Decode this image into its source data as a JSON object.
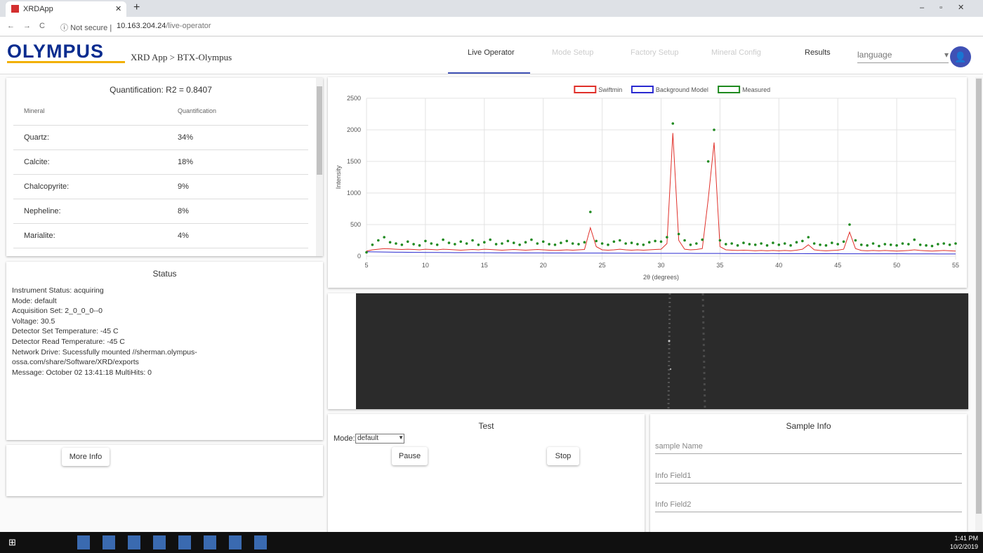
{
  "browser": {
    "tab_title": "XRDApp",
    "security": "Not secure",
    "url_host": "10.163.204.24",
    "url_path": "/live-operator"
  },
  "header": {
    "logo": "OLYMPUS",
    "breadcrumb": "XRD App > BTX-Olympus",
    "tabs": [
      "Live Operator",
      "Mode Setup",
      "Factory Setup",
      "Mineral Config",
      "Results"
    ],
    "language": "language"
  },
  "quantification": {
    "title": "Quantification: R2 = 0.8407",
    "columns": [
      "Mineral",
      "Quantification"
    ],
    "rows": [
      [
        "Quartz:",
        "34%"
      ],
      [
        "Calcite:",
        "18%"
      ],
      [
        "Chalcopyrite:",
        "9%"
      ],
      [
        "Nepheline:",
        "8%"
      ],
      [
        "Marialite:",
        "4%"
      ]
    ]
  },
  "status": {
    "title": "Status",
    "lines": [
      "Instrument Status: acquiring",
      "Mode: default",
      "Acquisition Set: 2_0_0_0--0",
      "Voltage: 30.5",
      "Detector Set Temperature: -45 C",
      "Detector Read Temperature: -45 C",
      "Network Drive: Sucessfully mounted //sherman.olympus-",
      "ossa.com/share/Software/XRD/exports",
      "Message: October 02 13:41:18 MultiHits: 0"
    ]
  },
  "more_info": "More Info",
  "chart_data": {
    "type": "line",
    "x_label": "2θ (degrees)",
    "y_label": "Intensity",
    "legend": "top",
    "grid": true,
    "xlim": [
      5,
      55
    ],
    "xticks": [
      5,
      10,
      15,
      20,
      25,
      30,
      35,
      40,
      45,
      50,
      55
    ],
    "ylim": [
      0,
      2500
    ],
    "yticks": [
      0,
      500,
      1000,
      1500,
      2000,
      2500
    ],
    "x": [
      5,
      5.5,
      6,
      6.5,
      7,
      7.5,
      8,
      8.5,
      9,
      9.5,
      10,
      10.5,
      11,
      11.5,
      12,
      12.5,
      13,
      13.5,
      14,
      14.5,
      15,
      15.5,
      16,
      16.5,
      17,
      17.5,
      18,
      18.5,
      19,
      19.5,
      20,
      20.5,
      21,
      21.5,
      22,
      22.5,
      23,
      23.5,
      24,
      24.5,
      25,
      25.5,
      26,
      26.5,
      27,
      27.5,
      28,
      28.5,
      29,
      29.5,
      30,
      30.5,
      31,
      31.5,
      32,
      32.5,
      33,
      33.5,
      34,
      34.5,
      35,
      35.5,
      36,
      36.5,
      37,
      37.5,
      38,
      38.5,
      39,
      39.5,
      40,
      40.5,
      41,
      41.5,
      42,
      42.5,
      43,
      43.5,
      44,
      44.5,
      45,
      45.5,
      46,
      46.5,
      47,
      47.5,
      48,
      48.5,
      49,
      49.5,
      50,
      50.5,
      51,
      51.5,
      52,
      52.5,
      53,
      53.5,
      54,
      54.5,
      55
    ],
    "series": [
      {
        "name": "Swiftmin",
        "color": "#e0302a",
        "type": "line",
        "values": [
          80,
          100,
          110,
          120,
          115,
          110,
          105,
          110,
          105,
          100,
          110,
          105,
          100,
          110,
          105,
          100,
          95,
          100,
          105,
          100,
          110,
          105,
          100,
          95,
          100,
          105,
          100,
          95,
          100,
          105,
          100,
          95,
          90,
          95,
          100,
          95,
          100,
          105,
          450,
          150,
          100,
          95,
          100,
          110,
          100,
          95,
          100,
          95,
          100,
          105,
          110,
          200,
          1950,
          250,
          110,
          100,
          105,
          120,
          900,
          1800,
          150,
          100,
          95,
          90,
          95,
          90,
          85,
          90,
          85,
          90,
          85,
          90,
          85,
          95,
          110,
          180,
          100,
          90,
          85,
          90,
          95,
          110,
          380,
          120,
          90,
          85,
          90,
          85,
          90,
          85,
          80,
          85,
          90,
          100,
          90,
          85,
          80,
          85,
          90,
          85,
          80
        ]
      },
      {
        "name": "Background Model",
        "color": "#2a2ad0",
        "type": "line",
        "values": [
          70,
          68,
          66,
          65,
          64,
          63,
          62,
          61,
          60,
          60,
          59,
          58,
          58,
          57,
          57,
          56,
          56,
          55,
          55,
          55,
          54,
          54,
          53,
          53,
          53,
          52,
          52,
          52,
          51,
          51,
          51,
          50,
          50,
          50,
          49,
          49,
          49,
          48,
          48,
          48,
          48,
          47,
          47,
          47,
          46,
          46,
          46,
          46,
          45,
          45,
          45,
          45,
          44,
          44,
          44,
          44,
          43,
          43,
          43,
          43,
          43,
          42,
          42,
          42,
          42,
          41,
          41,
          41,
          41,
          41,
          40,
          40,
          40,
          40,
          40,
          39,
          39,
          39,
          39,
          39,
          39,
          38,
          38,
          38,
          38,
          38,
          37,
          37,
          37,
          37,
          37,
          37,
          36,
          36,
          36,
          36,
          36,
          35,
          35,
          35,
          35
        ]
      },
      {
        "name": "Measured",
        "color": "#1f8a1f",
        "type": "scatter",
        "values": [
          60,
          180,
          250,
          300,
          220,
          200,
          180,
          230,
          190,
          170,
          240,
          200,
          180,
          260,
          210,
          190,
          230,
          200,
          250,
          180,
          220,
          260,
          190,
          200,
          240,
          210,
          180,
          220,
          260,
          200,
          230,
          190,
          180,
          210,
          240,
          200,
          190,
          220,
          700,
          240,
          200,
          180,
          230,
          250,
          200,
          210,
          190,
          180,
          220,
          240,
          230,
          300,
          2100,
          350,
          250,
          180,
          200,
          260,
          1500,
          2000,
          250,
          190,
          200,
          170,
          210,
          190,
          180,
          200,
          170,
          210,
          180,
          200,
          170,
          220,
          240,
          300,
          200,
          180,
          170,
          210,
          190,
          230,
          500,
          250,
          180,
          170,
          200,
          160,
          190,
          180,
          170,
          200,
          190,
          260,
          180,
          170,
          160,
          190,
          200,
          180,
          200
        ]
      }
    ]
  },
  "test": {
    "title": "Test",
    "mode_label": "Mode:",
    "mode_value": "default",
    "buttons": [
      "Pause",
      "Stop"
    ]
  },
  "sample_info": {
    "title": "Sample Info",
    "fields": [
      "sample Name",
      "Info Field1",
      "Info Field2"
    ]
  },
  "taskbar": {
    "time": "1:41 PM",
    "date": "10/2/2019"
  }
}
